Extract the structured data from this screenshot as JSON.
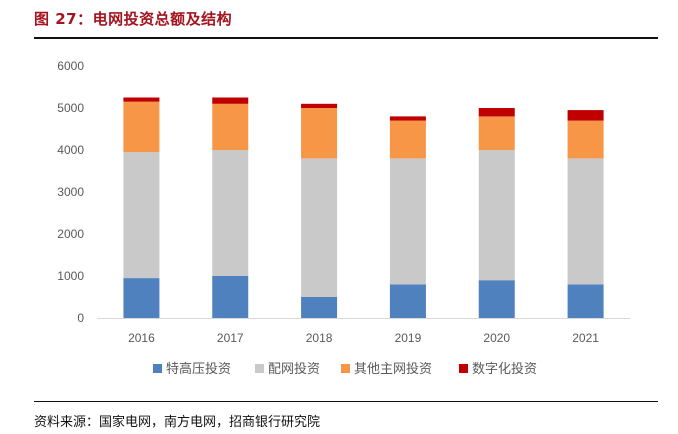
{
  "header": {
    "title": "图 27：电网投资总额及结构"
  },
  "footer": {
    "source": "资料来源：国家电网，南方电网，招商银行研究院"
  },
  "chart_data": {
    "type": "bar",
    "stacked": true,
    "title": "",
    "xlabel": "",
    "ylabel": "",
    "categories": [
      "2016",
      "2017",
      "2018",
      "2019",
      "2020",
      "2021"
    ],
    "ylim": [
      0,
      6000
    ],
    "yticks": [
      0,
      1000,
      2000,
      3000,
      4000,
      5000,
      6000
    ],
    "grid": false,
    "legend_position": "bottom",
    "series": [
      {
        "name": "特高压投资",
        "color": "#4e81bd",
        "values": [
          950,
          1000,
          500,
          800,
          900,
          800
        ]
      },
      {
        "name": "配网投资",
        "color": "#c9c9c9",
        "values": [
          3000,
          3000,
          3300,
          3000,
          3100,
          3000
        ]
      },
      {
        "name": "其他主网投资",
        "color": "#f79646",
        "values": [
          1200,
          1100,
          1200,
          900,
          800,
          900
        ]
      },
      {
        "name": "数字化投资",
        "color": "#c00000",
        "values": [
          100,
          150,
          100,
          100,
          200,
          250
        ]
      }
    ]
  }
}
